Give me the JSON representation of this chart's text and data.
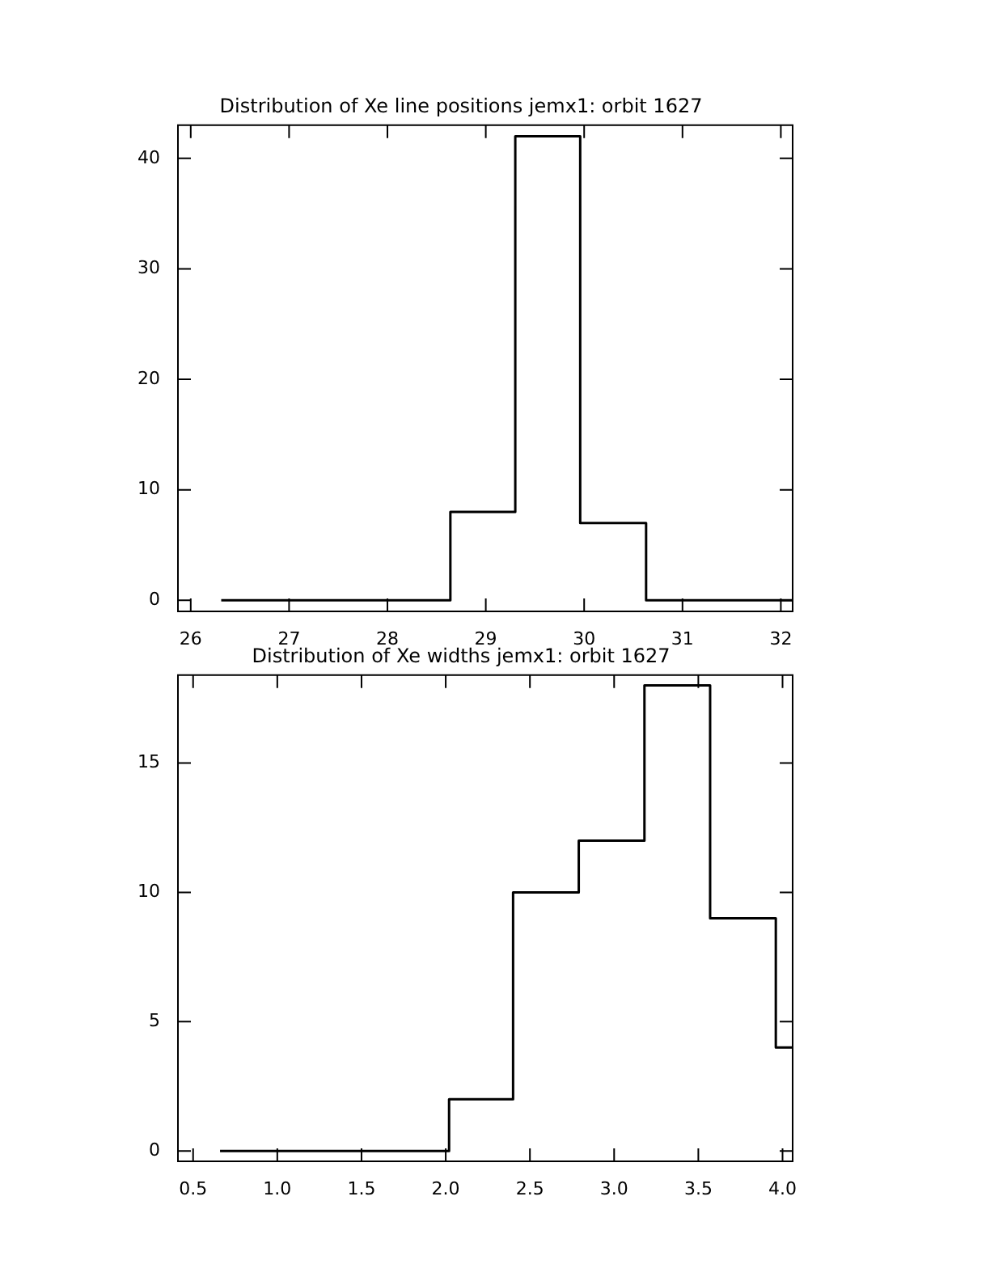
{
  "chart_data": [
    {
      "type": "histogram",
      "title": "Distribution of Xe line positions jemx1: orbit 1627",
      "bins": [
        26.31,
        28.64,
        29.3,
        29.96,
        30.63,
        32.12
      ],
      "values": [
        0,
        8,
        42,
        7,
        0
      ],
      "color": "#000000",
      "xlim": [
        25.87,
        32.12
      ],
      "ylim": [
        -1,
        43
      ],
      "xticks": [
        26,
        27,
        28,
        29,
        30,
        31,
        32
      ],
      "yticks": [
        0,
        10,
        20,
        30,
        40
      ],
      "grid": false
    },
    {
      "type": "histogram",
      "title": "Distribution of Xe widths jemx1: orbit 1627",
      "bins": [
        0.66,
        2.02,
        2.4,
        2.79,
        3.18,
        3.57,
        3.96,
        4.06
      ],
      "values": [
        0,
        2,
        10,
        12,
        18,
        9,
        4
      ],
      "color": "#000000",
      "xlim": [
        0.41,
        4.06
      ],
      "ylim": [
        -0.4,
        18.4
      ],
      "xticks": [
        {
          "value": 0.5,
          "label": "0.5"
        },
        {
          "value": 1,
          "label": "1.0"
        },
        {
          "value": 1.5,
          "label": "1.5"
        },
        {
          "value": 2,
          "label": "2.0"
        },
        {
          "value": 2.5,
          "label": "2.5"
        },
        {
          "value": 3,
          "label": "3.0"
        },
        {
          "value": 3.5,
          "label": "3.5"
        },
        {
          "value": 4,
          "label": "4.0"
        }
      ],
      "yticks": [
        0,
        5,
        10,
        15
      ],
      "grid": false
    }
  ]
}
